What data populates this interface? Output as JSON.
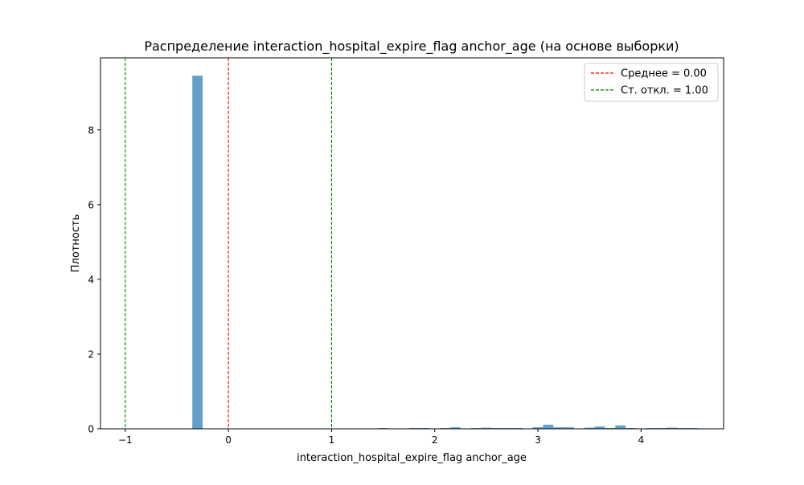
{
  "chart_data": {
    "type": "bar",
    "title": "Распределение interaction_hospital_expire_flag anchor_age (на основе выборки)",
    "xlabel": "interaction_hospital_expire_flag anchor_age",
    "ylabel": "Плотность",
    "xlim": [
      -1.24,
      4.8
    ],
    "ylim": [
      0,
      9.93
    ],
    "xticks": [
      -1,
      0,
      1,
      2,
      3,
      4
    ],
    "xtick_labels": [
      "−1",
      "0",
      "1",
      "2",
      "3",
      "4"
    ],
    "yticks": [
      0,
      2,
      4,
      6,
      8
    ],
    "ytick_labels": [
      "0",
      "2",
      "4",
      "6",
      "8"
    ],
    "bar_color": "#1f77b4",
    "bar_opacity": 0.7,
    "bin_width": 0.1,
    "bins": [
      {
        "x": -0.3,
        "y": 9.45
      },
      {
        "x": 1.5,
        "y": 0.01
      },
      {
        "x": 1.8,
        "y": 0.01
      },
      {
        "x": 1.9,
        "y": 0.01
      },
      {
        "x": 2.1,
        "y": 0.02
      },
      {
        "x": 2.2,
        "y": 0.04
      },
      {
        "x": 2.4,
        "y": 0.02
      },
      {
        "x": 2.5,
        "y": 0.03
      },
      {
        "x": 2.6,
        "y": 0.02
      },
      {
        "x": 2.7,
        "y": 0.02
      },
      {
        "x": 2.8,
        "y": 0.01
      },
      {
        "x": 3.0,
        "y": 0.04
      },
      {
        "x": 3.1,
        "y": 0.11
      },
      {
        "x": 3.2,
        "y": 0.04
      },
      {
        "x": 3.3,
        "y": 0.04
      },
      {
        "x": 3.5,
        "y": 0.03
      },
      {
        "x": 3.6,
        "y": 0.06
      },
      {
        "x": 3.7,
        "y": 0.02
      },
      {
        "x": 3.8,
        "y": 0.09
      },
      {
        "x": 3.9,
        "y": 0.02
      },
      {
        "x": 4.1,
        "y": 0.02
      },
      {
        "x": 4.2,
        "y": 0.01
      },
      {
        "x": 4.3,
        "y": 0.03
      },
      {
        "x": 4.4,
        "y": 0.01
      },
      {
        "x": 4.5,
        "y": 0.01
      }
    ],
    "reference_lines": [
      {
        "x": 0,
        "color": "#ff0000",
        "label": "Среднее = 0.00"
      },
      {
        "x": -1,
        "color": "#008000",
        "label": "Ст. откл. = 1.00"
      },
      {
        "x": 1,
        "color": "#008000",
        "label": ""
      }
    ],
    "legend": {
      "placement": "top-right",
      "entries": [
        {
          "label": "Среднее = 0.00",
          "color": "#ff0000"
        },
        {
          "label": "Ст. откл. = 1.00",
          "color": "#008000"
        }
      ]
    },
    "grid": false
  }
}
